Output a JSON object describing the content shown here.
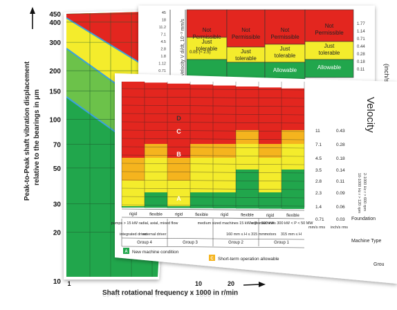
{
  "colors": {
    "green": "#21a64c",
    "light_green": "#6cc24a",
    "yellow": "#f4ec2c",
    "orange": "#f5b41e",
    "red": "#e3261f",
    "grid": "#333333"
  },
  "chart_data": [
    {
      "type": "area",
      "name_hint": "displacement-chart",
      "ylabel_line1": "Peak-to-Peak shaft vibration displacement",
      "ylabel_line2": "relative to the bearings in μm",
      "xlabel": "Shaft rotational frequency x 1000 in r/min",
      "y_ticks": [
        "450",
        "400",
        "300",
        "200",
        "150",
        "100",
        "70",
        "50",
        "30",
        "20",
        "10"
      ],
      "x_ticks": [
        "1",
        "10",
        "20"
      ],
      "log_scale": true
    },
    {
      "type": "table",
      "name_hint": "severity-table",
      "ylabel": "Velocity V di/dt, 10⁻³ mm/s",
      "right_label": "(inch/s)",
      "columns": [
        {
          "top": "Not Permissible",
          "mid": "Just tolerable",
          "bottom": ""
        },
        {
          "top": "Not Permissible",
          "mid": "Just tolerable",
          "bottom": ""
        },
        {
          "top": "Not Permissible",
          "mid": "Just tolerable",
          "bottom": "Allowable"
        },
        {
          "top": "Not Permissible",
          "mid": "Just tolerable",
          "bottom": "Allowable"
        }
      ],
      "left_values": [
        "45",
        "18",
        "11.2",
        "7.1",
        "4.5",
        "2.8",
        "1.8",
        "1.12",
        "0.71"
      ],
      "right_values": [
        "1.77",
        "1.14",
        "0.71",
        "0.44",
        "0.28",
        "0.18",
        "0.11"
      ],
      "note": "0.05 (≈ 2.5)"
    },
    {
      "type": "heatmap",
      "name_hint": "velocity-chart",
      "title": "Velocity",
      "side_note1": "2-1000 Hz r > 600 rpm",
      "side_note2": "10-1000 Hz r > 120 rpm",
      "zone_labels": [
        "D",
        "C",
        "B",
        "A"
      ],
      "mm_values": [
        "11",
        "7.1",
        "4.5",
        "3.5",
        "2.8",
        "2.3",
        "1.4",
        "0.71"
      ],
      "inch_values": [
        "0.43",
        "0.28",
        "0.18",
        "0.14",
        "0.11",
        "0.09",
        "0.06",
        "0.03"
      ],
      "mm_unit": "mm/s rms",
      "inch_unit": "inch/s rms",
      "columns": [
        {
          "support": "rigid",
          "levels": [
            1.4,
            2.8,
            4.5
          ]
        },
        {
          "support": "flexible",
          "levels": [
            2.3,
            4.5,
            7.1
          ]
        },
        {
          "support": "rigid",
          "levels": [
            1.4,
            2.8,
            4.5
          ]
        },
        {
          "support": "flexible",
          "levels": [
            2.3,
            4.5,
            7.1
          ]
        },
        {
          "support": "rigid",
          "levels": [
            2.3,
            4.5,
            7.1
          ]
        },
        {
          "support": "flexible",
          "levels": [
            3.5,
            7.1,
            11
          ]
        },
        {
          "support": "rigid",
          "levels": [
            2.3,
            4.5,
            7.1
          ]
        },
        {
          "support": "flexible",
          "levels": [
            3.5,
            7.1,
            11
          ]
        }
      ],
      "foundation_label": "Foundation",
      "machine_type_label": "Machine Type",
      "group_label": "Grou",
      "machine_groups": [
        {
          "desc": "pumps > 15 kW radial, axial, mixed flow",
          "drive1": "integrated driver",
          "drive2": "external driver",
          "group": "Group 4"
        },
        {
          "desc": "",
          "drive1": "",
          "drive2": "",
          "group": "Group 3"
        },
        {
          "desc": "medium sized machines 15 kW < P ≤ 300 kW",
          "drive1": "",
          "drive2": "160 mm ≤ H ≤ 315 mm",
          "group": "Group 2"
        },
        {
          "desc": "large machines 300 kW < P < 50 MW",
          "drive1": "motors",
          "drive2": "315 mm ≤ H",
          "group": "Group 1"
        }
      ],
      "legend": [
        {
          "key": "A",
          "text": "New machine condition"
        },
        {
          "key": "C",
          "text": "Short-term operation allowable"
        }
      ]
    }
  ]
}
